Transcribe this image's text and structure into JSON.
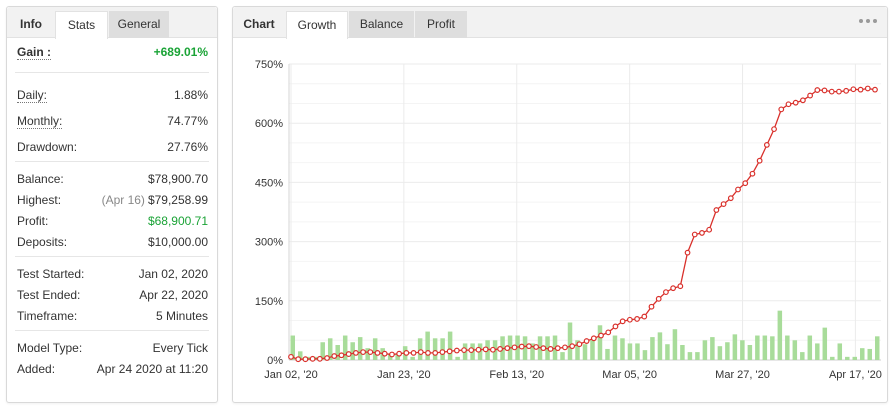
{
  "stats_panel": {
    "tabs": [
      {
        "label": "Info"
      },
      {
        "label": "Stats"
      },
      {
        "label": "General"
      }
    ],
    "rows": {
      "gain": {
        "label": "Gain :",
        "value": "+689.01%"
      },
      "daily": {
        "label": "Daily:",
        "value": "1.88%"
      },
      "monthly": {
        "label": "Monthly:",
        "value": "74.77%"
      },
      "drawdown": {
        "label": "Drawdown:",
        "value": "27.76%"
      },
      "balance": {
        "label": "Balance:",
        "value": "$78,900.70"
      },
      "highest": {
        "label": "Highest:",
        "note": "(Apr 16)",
        "value": "$79,258.99"
      },
      "profit": {
        "label": "Profit:",
        "value": "$68,900.71"
      },
      "deposits": {
        "label": "Deposits:",
        "value": "$10,000.00"
      },
      "test_started": {
        "label": "Test Started:",
        "value": "Jan 02, 2020"
      },
      "test_ended": {
        "label": "Test Ended:",
        "value": "Apr 22, 2020"
      },
      "timeframe": {
        "label": "Timeframe:",
        "value": "5 Minutes"
      },
      "model_type": {
        "label": "Model Type:",
        "value": "Every Tick"
      },
      "added": {
        "label": "Added:",
        "value": "Apr 24 2020 at 11:20"
      }
    }
  },
  "chart_panel": {
    "tabs": [
      {
        "label": "Chart"
      },
      {
        "label": "Growth"
      },
      {
        "label": "Balance"
      },
      {
        "label": "Profit"
      }
    ],
    "menu_icon": "more-horizontal-icon"
  },
  "colors": {
    "line": "#d9302b",
    "bars": "#a8dc9a",
    "positive": "#1aa336",
    "grid": "#ebebeb"
  },
  "chart_data": {
    "type": "line",
    "title": "",
    "xlabel": "",
    "ylabel": "",
    "x_start": "Jan 02, '20",
    "x_ticks": [
      "Jan 02, '20",
      "Jan 23, '20",
      "Feb 13, '20",
      "Mar 05, '20",
      "Mar 27, '20",
      "Apr 17, '20"
    ],
    "y_ticks": [
      "0%",
      "150%",
      "300%",
      "450%",
      "600%",
      "750%"
    ],
    "ylim": [
      0,
      750
    ],
    "grid": true,
    "series": [
      {
        "type": "line",
        "values": [
          8,
          2,
          2,
          3,
          3,
          5,
          10,
          12,
          15,
          18,
          20,
          20,
          18,
          16,
          14,
          16,
          18,
          18,
          20,
          18,
          18,
          20,
          22,
          24,
          25,
          25,
          26,
          27,
          26,
          28,
          30,
          32,
          34,
          35,
          33,
          30,
          28,
          30,
          32,
          35,
          40,
          48,
          55,
          62,
          70,
          85,
          98,
          102,
          104,
          110,
          135,
          155,
          172,
          182,
          187,
          272,
          318,
          322,
          330,
          380,
          395,
          410,
          432,
          448,
          472,
          505,
          545,
          585,
          635,
          648,
          652,
          658,
          670,
          684,
          683,
          680,
          680,
          682,
          686,
          685,
          688,
          685
        ]
      },
      {
        "type": "bar",
        "values": [
          62,
          22,
          8,
          8,
          45,
          55,
          38,
          62,
          45,
          58,
          30,
          55,
          30,
          15,
          15,
          35,
          8,
          55,
          72,
          55,
          55,
          72,
          8,
          42,
          42,
          42,
          50,
          50,
          60,
          62,
          62,
          60,
          42,
          60,
          60,
          62,
          20,
          95,
          50,
          40,
          50,
          88,
          28,
          62,
          55,
          42,
          42,
          25,
          58,
          70,
          40,
          78,
          38,
          20,
          20,
          50,
          58,
          35,
          45,
          65,
          50,
          38,
          62,
          62,
          60,
          125,
          62,
          50,
          20,
          62,
          42,
          82,
          8,
          42,
          8,
          8,
          30,
          28,
          60
        ]
      }
    ]
  }
}
